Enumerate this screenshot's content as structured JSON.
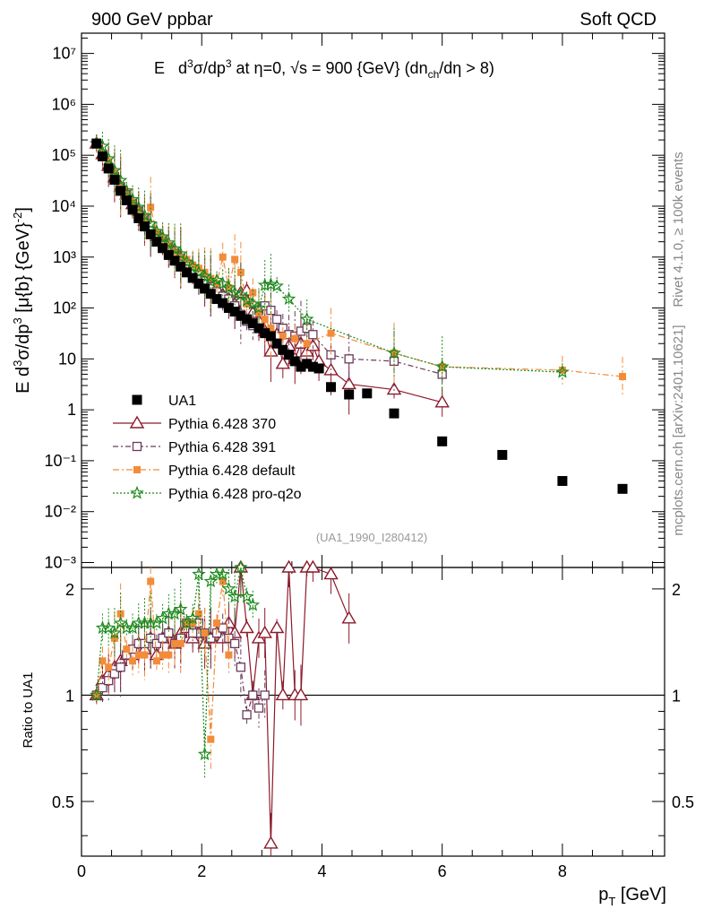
{
  "header": {
    "left_label": "900 GeV ppbar",
    "right_label": "Soft QCD",
    "side_top": "Rivet 4.1.0, ≥ 100k events",
    "side_bottom": "mcplots.cern.ch [arXiv:2401.10621]"
  },
  "colors": {
    "ua1": "#000000",
    "p370": "#8b1a2b",
    "p391": "#6b3a5b",
    "default": "#f28c3a",
    "proq2o": "#1a8a1a"
  },
  "chart_data": [
    {
      "type": "scatter",
      "title": "E d³σ/dp³ at η=0, √s = 900 {GeV} (dn_ch/dη > 8)",
      "ylabel": "E d³σ/dp³ [μ{b} {GeV}⁻²]",
      "yscale": "log",
      "ylim": [
        0.0008,
        25000000
      ],
      "xlim": [
        0,
        9.7
      ],
      "ytick_labels": [
        "10⁻³",
        "10⁻²",
        "10⁻¹",
        "1",
        "10",
        "10²",
        "10³",
        "10⁴",
        "10⁵",
        "10⁶",
        "10⁷"
      ],
      "annotation": "(UA1_1990_I280412)",
      "legend_position": "lower-left",
      "series": [
        {
          "name": "UA1",
          "key": "ua1",
          "marker": "square",
          "x": [
            0.25,
            0.35,
            0.45,
            0.55,
            0.65,
            0.75,
            0.85,
            0.95,
            1.05,
            1.15,
            1.25,
            1.35,
            1.45,
            1.55,
            1.65,
            1.75,
            1.85,
            1.95,
            2.05,
            2.15,
            2.25,
            2.35,
            2.45,
            2.55,
            2.65,
            2.75,
            2.85,
            2.95,
            3.05,
            3.15,
            3.25,
            3.35,
            3.45,
            3.55,
            3.65,
            3.75,
            3.85,
            3.95,
            4.15,
            4.45,
            4.75,
            5.2,
            6.0,
            7.0,
            8.0,
            9.0
          ],
          "y": [
            170000,
            95000,
            55000,
            33000,
            20000,
            13000,
            8500,
            5800,
            4000,
            2800,
            2000,
            1500,
            1100,
            850,
            650,
            500,
            390,
            300,
            240,
            190,
            150,
            125,
            100,
            85,
            70,
            60,
            50,
            40,
            32,
            28,
            20,
            15,
            12,
            9,
            7,
            8,
            7,
            6.5,
            2.8,
            2.0,
            2.1,
            0.85,
            0.24,
            0.13,
            0.04,
            0.028
          ]
        },
        {
          "name": "Pythia 6.428 370",
          "key": "p370",
          "marker": "triangle",
          "x": [
            0.25,
            0.35,
            0.45,
            0.55,
            0.65,
            0.75,
            0.85,
            0.95,
            1.05,
            1.15,
            1.25,
            1.35,
            1.45,
            1.55,
            1.65,
            1.75,
            1.85,
            1.95,
            2.05,
            2.15,
            2.25,
            2.35,
            2.45,
            2.55,
            2.65,
            2.75,
            2.85,
            2.95,
            3.05,
            3.15,
            3.25,
            3.35,
            3.45,
            3.55,
            3.65,
            3.75,
            3.85,
            3.95,
            4.15,
            4.45,
            5.2,
            6.0
          ],
          "y": [
            170000,
            105000,
            62000,
            37000,
            24000,
            17000,
            11000,
            8000,
            5200,
            4000,
            2600,
            2100,
            1500,
            1200,
            950,
            730,
            580,
            450,
            330,
            270,
            210,
            180,
            150,
            120,
            200,
            220,
            80,
            55,
            35,
            14,
            30,
            8,
            18,
            10,
            20,
            14,
            18,
            9,
            6,
            3.2,
            2.5,
            1.4
          ]
        },
        {
          "name": "Pythia 6.428 391",
          "key": "p391",
          "marker": "open-square",
          "x": [
            0.25,
            0.35,
            0.45,
            0.55,
            0.65,
            0.75,
            0.85,
            0.95,
            1.05,
            1.15,
            1.25,
            1.35,
            1.45,
            1.55,
            1.65,
            1.75,
            1.85,
            1.95,
            2.05,
            2.15,
            2.25,
            2.35,
            2.45,
            2.55,
            2.65,
            2.75,
            2.85,
            2.95,
            3.05,
            3.15,
            3.25,
            3.35,
            3.45,
            3.55,
            3.65,
            3.75,
            3.85,
            4.15,
            4.45,
            5.2,
            6.0
          ],
          "y": [
            170000,
            105000,
            58000,
            38000,
            24000,
            17000,
            11500,
            8000,
            5600,
            4100,
            2800,
            2100,
            1600,
            1200,
            950,
            720,
            560,
            440,
            340,
            260,
            210,
            170,
            150,
            110,
            75,
            55,
            45,
            90,
            110,
            90,
            60,
            40,
            30,
            28,
            35,
            40,
            30,
            12,
            10,
            9,
            5
          ]
        },
        {
          "name": "Pythia 6.428 default",
          "key": "default",
          "marker": "filled-square",
          "x": [
            0.25,
            0.35,
            0.45,
            0.55,
            0.65,
            0.75,
            0.85,
            0.95,
            1.05,
            1.15,
            1.25,
            1.35,
            1.45,
            1.55,
            1.65,
            1.75,
            1.85,
            1.95,
            2.05,
            2.15,
            2.25,
            2.35,
            2.45,
            2.55,
            2.65,
            2.75,
            2.85,
            2.95,
            3.05,
            3.15,
            3.35,
            3.55,
            3.75,
            4.15,
            5.2,
            6.0,
            8.0,
            9.0
          ],
          "y": [
            170000,
            110000,
            75000,
            45000,
            25000,
            17000,
            12000,
            8000,
            5500,
            9500,
            3000,
            2300,
            1700,
            1300,
            1000,
            900,
            700,
            600,
            500,
            380,
            300,
            1000,
            250,
            900,
            500,
            120,
            200,
            80,
            60,
            40,
            28,
            25,
            20,
            32,
            13,
            7,
            6,
            4.5
          ]
        },
        {
          "name": "Pythia 6.428 pro-q2o",
          "key": "proq2o",
          "marker": "star",
          "x": [
            0.25,
            0.35,
            0.45,
            0.55,
            0.65,
            0.75,
            0.85,
            0.95,
            1.05,
            1.15,
            1.25,
            1.35,
            1.45,
            1.55,
            1.65,
            1.75,
            1.85,
            1.95,
            2.05,
            2.15,
            2.25,
            2.35,
            2.45,
            2.55,
            2.65,
            2.75,
            2.85,
            2.95,
            3.05,
            3.15,
            3.25,
            3.45,
            3.75,
            5.2,
            6.0,
            8.0
          ],
          "y": [
            170000,
            150000,
            85000,
            50000,
            32000,
            20000,
            13500,
            9500,
            6500,
            4500,
            3200,
            2500,
            1900,
            1450,
            1150,
            800,
            650,
            500,
            420,
            330,
            350,
            300,
            250,
            200,
            180,
            140,
            120,
            100,
            280,
            290,
            270,
            150,
            60,
            13,
            7,
            5.5
          ]
        }
      ]
    },
    {
      "type": "scatter",
      "ylabel": "Ratio to UA1",
      "yscale": "log",
      "ylim": [
        0.35,
        2.3
      ],
      "xlim": [
        0,
        9.7
      ],
      "xlabel": "p_T [GeV]",
      "xtick_labels": [
        "0",
        "2",
        "4",
        "6",
        "8"
      ],
      "ytick_labels": [
        "0.5",
        "1",
        "2"
      ],
      "reference_line": 1,
      "series": [
        {
          "name": "Pythia 6.428 370",
          "key": "p370",
          "x": [
            0.25,
            0.35,
            0.45,
            0.55,
            0.65,
            0.75,
            0.85,
            0.95,
            1.05,
            1.15,
            1.25,
            1.35,
            1.45,
            1.55,
            1.65,
            1.75,
            1.85,
            1.95,
            2.05,
            2.15,
            2.25,
            2.35,
            2.45,
            2.55,
            2.65,
            2.75,
            2.85,
            2.95,
            3.05,
            3.15,
            3.25,
            3.35,
            3.45,
            3.55,
            3.65,
            3.75,
            3.85,
            4.15,
            4.45
          ],
          "y": [
            1.0,
            1.1,
            1.15,
            1.2,
            1.25,
            1.3,
            1.3,
            1.4,
            1.35,
            1.45,
            1.3,
            1.45,
            1.5,
            1.4,
            1.5,
            1.55,
            1.45,
            1.5,
            1.4,
            1.45,
            1.5,
            1.45,
            1.6,
            1.5,
            2.5,
            1.55,
            1.0,
            1.45,
            1.5,
            0.38,
            1.55,
            1.0,
            2.5,
            1.0,
            1.0,
            2.5,
            2.5,
            2.2,
            1.65
          ]
        },
        {
          "name": "Pythia 6.428 391",
          "key": "p391",
          "x": [
            0.25,
            0.35,
            0.45,
            0.55,
            0.65,
            0.75,
            0.85,
            0.95,
            1.05,
            1.15,
            1.25,
            1.35,
            1.45,
            1.55,
            1.65,
            1.75,
            1.85,
            1.95,
            2.05,
            2.15,
            2.25,
            2.35,
            2.45,
            2.55,
            2.65,
            2.75,
            2.85,
            2.95,
            3.05
          ],
          "y": [
            1.0,
            1.05,
            1.1,
            1.15,
            1.2,
            1.3,
            1.35,
            1.4,
            1.4,
            1.45,
            1.4,
            1.45,
            1.5,
            1.4,
            1.45,
            1.6,
            1.5,
            1.6,
            1.5,
            1.45,
            1.5,
            1.55,
            1.45,
            1.4,
            1.2,
            0.88,
            1.0,
            0.92,
            1.0
          ]
        },
        {
          "name": "Pythia 6.428 default",
          "key": "default",
          "x": [
            0.25,
            0.35,
            0.45,
            0.55,
            0.65,
            0.75,
            0.85,
            0.95,
            1.05,
            1.15,
            1.25,
            1.35,
            1.45,
            1.55,
            1.65,
            1.75,
            1.85,
            1.95,
            2.05,
            2.15,
            2.25,
            2.35,
            2.45
          ],
          "y": [
            1.0,
            1.25,
            1.2,
            1.45,
            1.7,
            1.35,
            1.25,
            1.3,
            1.3,
            2.1,
            1.25,
            1.3,
            1.3,
            1.4,
            1.4,
            1.6,
            1.6,
            1.7,
            1.5,
            0.75,
            1.6,
            2.1,
            1.3
          ]
        },
        {
          "name": "Pythia 6.428 pro-q2o",
          "key": "proq2o",
          "x": [
            0.25,
            0.35,
            0.45,
            0.55,
            0.65,
            0.75,
            0.85,
            0.95,
            1.05,
            1.15,
            1.25,
            1.35,
            1.45,
            1.55,
            1.65,
            1.75,
            1.85,
            1.95,
            2.05,
            2.15,
            2.25,
            2.35,
            2.45,
            2.55,
            2.65,
            2.75,
            2.85
          ],
          "y": [
            1.0,
            1.55,
            1.55,
            1.5,
            1.6,
            1.55,
            1.55,
            1.6,
            1.6,
            1.6,
            1.6,
            1.65,
            1.7,
            1.7,
            1.75,
            1.6,
            1.65,
            2.2,
            0.68,
            2.1,
            2.2,
            2.2,
            2.0,
            1.9,
            2.3,
            1.9,
            1.8
          ]
        }
      ]
    }
  ]
}
